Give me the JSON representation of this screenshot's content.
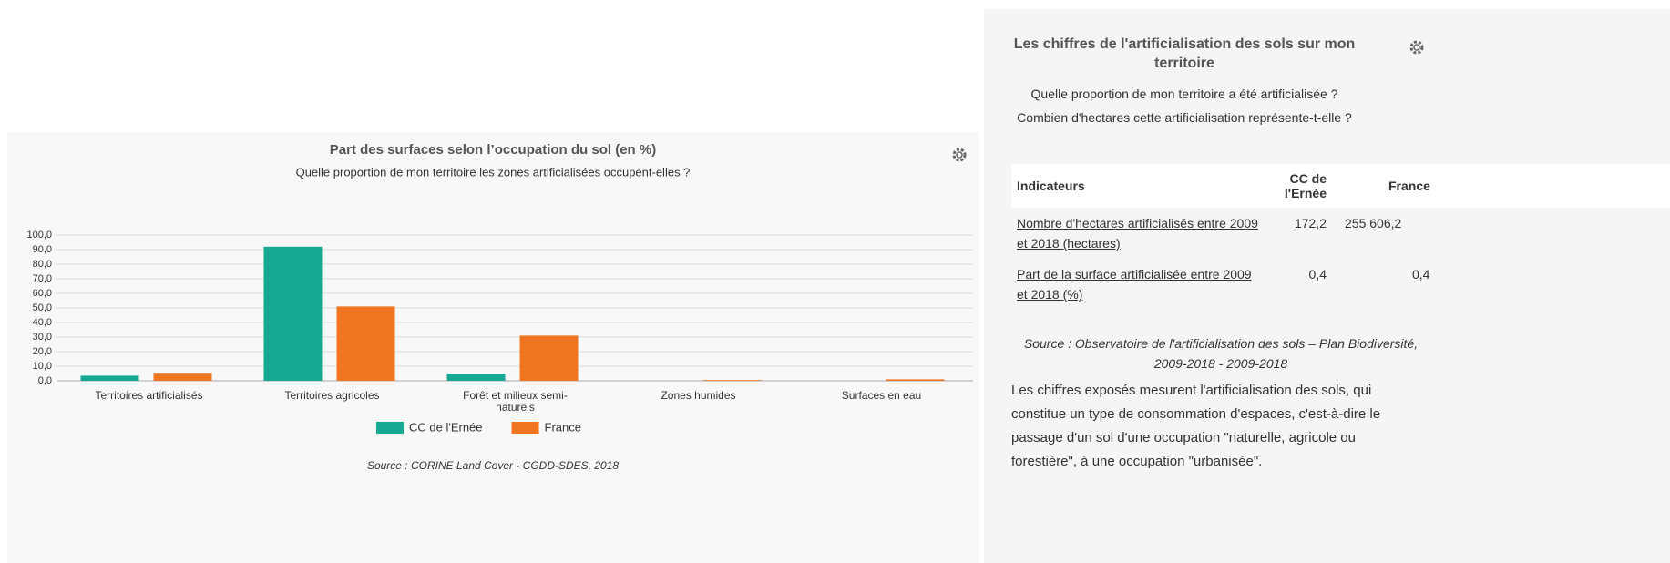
{
  "chart_data": {
    "type": "bar",
    "title": "Part des surfaces selon l’occupation du sol (en %)",
    "subtitle": "Quelle proportion de mon territoire les zones artificialisées occupent-elles ?",
    "categories": [
      "Territoires artificialisés",
      "Territoires agricoles",
      "Forêt et milieux semi-naturels",
      "Zones humides",
      "Surfaces en eau"
    ],
    "series": [
      {
        "name": "CC de l'Ernée",
        "color": "#17a891",
        "values": [
          3.5,
          92,
          5,
          0,
          0
        ]
      },
      {
        "name": "France",
        "color": "#f07520",
        "values": [
          5.5,
          51,
          31,
          0.5,
          1
        ]
      }
    ],
    "ylim": [
      0,
      100
    ],
    "yticks": [
      {
        "value": 0,
        "label": "0,0"
      },
      {
        "value": 10,
        "label": "10,0"
      },
      {
        "value": 20,
        "label": "20,0"
      },
      {
        "value": 30,
        "label": "30,0"
      },
      {
        "value": 40,
        "label": "40,0"
      },
      {
        "value": 50,
        "label": "50,0"
      },
      {
        "value": 60,
        "label": "60,0"
      },
      {
        "value": 70,
        "label": "70,0"
      },
      {
        "value": 80,
        "label": "80,0"
      },
      {
        "value": 90,
        "label": "90,0"
      },
      {
        "value": 100,
        "label": "100,0"
      }
    ],
    "grid": true,
    "source": "Source : CORINE Land Cover - CGDD-SDES, 2018"
  },
  "panel": {
    "title": "Les chiffres de l'artificialisation des sols sur mon territoire",
    "question": "Quelle proportion de mon territoire a été artificialisée ? Combien d'hectares cette artificialisation représente-t-elle ?",
    "table": {
      "header": [
        "Indicateurs",
        "CC de l'Ernée",
        "France"
      ],
      "rows": [
        [
          "Nombre d'hectares artificialisés entre 2009 et 2018 (hectares)",
          "172,2",
          "255 606,2"
        ],
        [
          "Part de la surface artificialisée entre 2009 et 2018 (%)",
          "0,4",
          "0,4"
        ]
      ]
    },
    "source": "Source : Observatoire de l'artificialisation des sols – Plan Biodiversité, 2009-2018 - 2009-2018",
    "text": "Les chiffres exposés mesurent l'artificialisation des sols, qui constitue un type de consommation d'espaces, c'est-à-dire le passage d'un sol d'une occupation \"naturelle, agricole ou forestière\", à une occupation \"urbanisée\"."
  }
}
